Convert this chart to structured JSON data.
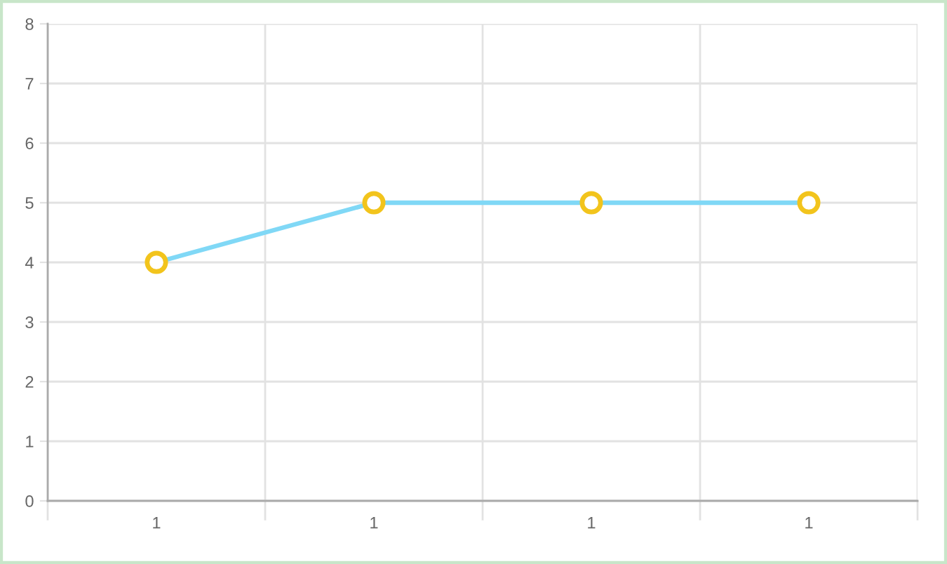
{
  "chart_data": {
    "type": "line",
    "categories": [
      "1",
      "1",
      "1",
      "1"
    ],
    "series": [
      {
        "color": "#80d8f6",
        "colors": [
          "#f2c41c",
          "#f2c41c",
          "#f2c41c",
          "#f2c41c"
        ],
        "values": [
          4,
          5,
          5,
          5
        ]
      }
    ],
    "ylim": [
      0,
      8
    ],
    "yticks": [
      0,
      1,
      2,
      3,
      4,
      5,
      6,
      7,
      8
    ],
    "grid": true,
    "marker": "circle",
    "line_style": "solid"
  }
}
